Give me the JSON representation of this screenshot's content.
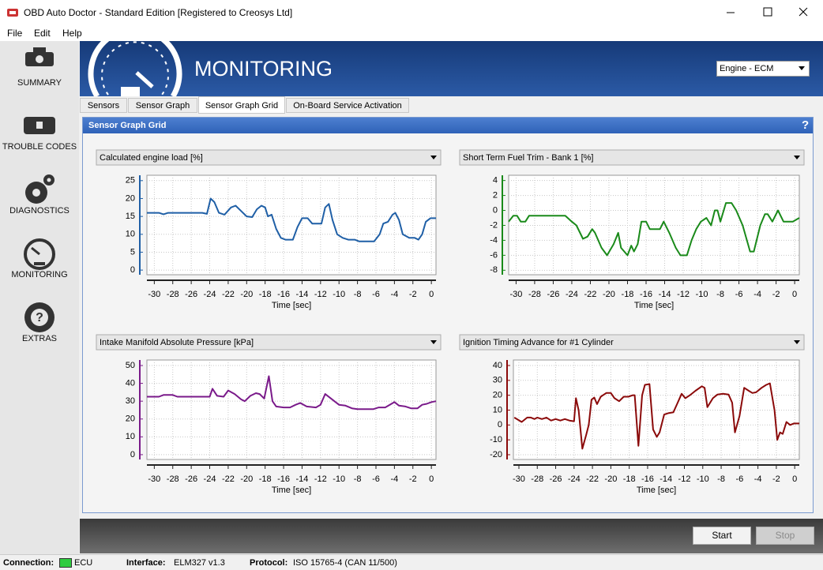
{
  "window": {
    "title": "OBD Auto Doctor - Standard Edition [Registered to Creosys Ltd]"
  },
  "menu": [
    "File",
    "Edit",
    "Help"
  ],
  "sidebar": [
    "SUMMARY",
    "TROUBLE CODES",
    "DIAGNOSTICS",
    "MONITORING",
    "EXTRAS"
  ],
  "header": {
    "title": "MONITORING",
    "ecu": "Engine - ECM"
  },
  "tabs": [
    "Sensors",
    "Sensor Graph",
    "Sensor Graph Grid",
    "On-Board Service Activation"
  ],
  "panel": {
    "title": "Sensor Graph Grid",
    "help": "?"
  },
  "buttons": [
    "Start",
    "Stop"
  ],
  "status": {
    "connection_label": "Connection:",
    "connection": "ECU",
    "interface_label": "Interface:",
    "interface": "ELM327 v1.3",
    "protocol_label": "Protocol:",
    "protocol": "ISO 15765-4 (CAN 11/500)"
  },
  "chart_data": [
    {
      "type": "line",
      "title": "Calculated engine load [%]",
      "xlabel": "Time [sec]",
      "color": "#1f5fa6",
      "xlim": [
        -30.8,
        0.5
      ],
      "xticks": [
        -30,
        -28,
        -26,
        -24,
        -22,
        -20,
        -18,
        -16,
        -14,
        -12,
        -10,
        -8,
        -6,
        -4,
        -2,
        0
      ],
      "ylim": [
        -1.3,
        26.5
      ],
      "yticks": [
        0,
        5,
        10,
        15,
        20,
        25
      ],
      "x": [
        -30.8,
        -29.5,
        -29,
        -28.5,
        -24.8,
        -24.3,
        -23.9,
        -23.5,
        -23,
        -22.4,
        -21.7,
        -21.2,
        -20.6,
        -20,
        -19.4,
        -18.9,
        -18.4,
        -18,
        -17.7,
        -17.3,
        -16.8,
        -16.3,
        -15.8,
        -15,
        -14.5,
        -14,
        -13.4,
        -12.9,
        -11.9,
        -11.5,
        -11.1,
        -10.7,
        -10.2,
        -9.6,
        -9,
        -8.3,
        -7.8,
        -6.2,
        -5.6,
        -5.2,
        -4.7,
        -4.2,
        -3.9,
        -3.5,
        -3.1,
        -2.4,
        -1.8,
        -1.4,
        -1,
        -0.6,
        -0.1,
        0.5
      ],
      "values": [
        16,
        16,
        15.6,
        16,
        16,
        15.7,
        20,
        19,
        16,
        15.5,
        17.5,
        18,
        16.5,
        15,
        14.8,
        17,
        18,
        17.5,
        15,
        15.5,
        11.5,
        9,
        8.5,
        8.5,
        12,
        14.5,
        14.5,
        13,
        13,
        17.5,
        18.5,
        14,
        10,
        9,
        8.5,
        8.5,
        8,
        8,
        10,
        13,
        13.5,
        15.5,
        16,
        14,
        10,
        9,
        9,
        8.5,
        10,
        13.5,
        14.5,
        14.5
      ]
    },
    {
      "type": "line",
      "title": "Short Term Fuel Trim - Bank 1 [%]",
      "xlabel": "Time [sec]",
      "color": "#1a8a1a",
      "xlim": [
        -30.8,
        0.5
      ],
      "xticks": [
        -30,
        -28,
        -26,
        -24,
        -22,
        -20,
        -18,
        -16,
        -14,
        -12,
        -10,
        -8,
        -6,
        -4,
        -2,
        0
      ],
      "ylim": [
        -8.6,
        4.7
      ],
      "yticks": [
        -8,
        -6,
        -4,
        -2,
        0,
        2,
        4
      ],
      "x": [
        -30.8,
        -30.3,
        -29.9,
        -29.5,
        -29,
        -28.6,
        -24.7,
        -24,
        -23.5,
        -22.8,
        -22.3,
        -21.8,
        -21.5,
        -20.8,
        -20.2,
        -19.5,
        -19,
        -18.7,
        -18,
        -17.6,
        -17.3,
        -16.9,
        -16.5,
        -16,
        -15.6,
        -14.5,
        -14.1,
        -13.5,
        -12.8,
        -12.3,
        -11.6,
        -11.1,
        -10.6,
        -10.1,
        -9.5,
        -9,
        -8.6,
        -8.3,
        -8,
        -7.4,
        -6.8,
        -6.3,
        -5.6,
        -4.8,
        -4.4,
        -3.7,
        -3.2,
        -2.9,
        -2.4,
        -1.8,
        -1.2,
        -0.2,
        0.5
      ],
      "values": [
        -1.5,
        -0.7,
        -0.7,
        -1.5,
        -1.5,
        -0.7,
        -0.7,
        -1.5,
        -2,
        -3.8,
        -3.5,
        -2.5,
        -3,
        -5,
        -6,
        -4.5,
        -3,
        -5,
        -6,
        -4.7,
        -5.5,
        -4.5,
        -1.5,
        -1.5,
        -2.5,
        -2.5,
        -1.5,
        -3,
        -5,
        -6,
        -6,
        -4,
        -2.5,
        -1.5,
        -1,
        -2,
        0,
        0,
        -1.5,
        1,
        1,
        0,
        -2,
        -5.5,
        -5.5,
        -2,
        -0.5,
        -0.5,
        -1.5,
        0,
        -1.5,
        -1.5,
        -1
      ]
    },
    {
      "type": "line",
      "title": "Intake Manifold Absolute Pressure [kPa]",
      "xlabel": "Time [sec]",
      "color": "#7a1a8a",
      "xlim": [
        -30.8,
        0.5
      ],
      "xticks": [
        -30,
        -28,
        -26,
        -24,
        -22,
        -20,
        -18,
        -16,
        -14,
        -12,
        -10,
        -8,
        -6,
        -4,
        -2,
        0
      ],
      "ylim": [
        -2.7,
        53.1
      ],
      "yticks": [
        0,
        10,
        20,
        30,
        40,
        50
      ],
      "x": [
        -30.8,
        -29.5,
        -29,
        -28,
        -27.5,
        -24,
        -23.7,
        -23.2,
        -22.5,
        -22,
        -21.3,
        -20.6,
        -20.2,
        -19.6,
        -19,
        -18.6,
        -18.1,
        -17.6,
        -17.2,
        -16.8,
        -16,
        -15.3,
        -14.7,
        -14.2,
        -13.5,
        -12.5,
        -12,
        -11.5,
        -11,
        -10.5,
        -10,
        -9.3,
        -8.6,
        -8,
        -6.3,
        -5.7,
        -5,
        -4.5,
        -4,
        -3.5,
        -2.8,
        -2.2,
        -1.5,
        -1,
        -0.5,
        0,
        0.5
      ],
      "values": [
        32.5,
        32.5,
        33.5,
        33.5,
        32.5,
        32.5,
        37,
        33,
        32.5,
        36,
        34,
        31,
        30,
        33,
        34.5,
        34,
        31.5,
        44,
        30,
        27,
        26.5,
        26.5,
        28,
        29,
        27,
        26.5,
        28,
        34,
        32,
        30,
        28,
        27.5,
        26,
        25.5,
        25.5,
        26.5,
        26.5,
        28,
        29.5,
        27.5,
        27,
        26,
        26,
        28,
        28.5,
        29.5,
        30
      ]
    },
    {
      "type": "line",
      "title": "Ignition Timing Advance for #1 Cylinder",
      "xlabel": "Time [sec]",
      "color": "#8b0a0a",
      "xlim": [
        -30.6,
        0.5
      ],
      "xticks": [
        -30,
        -28,
        -26,
        -24,
        -22,
        -20,
        -18,
        -16,
        -14,
        -12,
        -10,
        -8,
        -6,
        -4,
        -2,
        0
      ],
      "ylim": [
        -23.2,
        43.7
      ],
      "yticks": [
        -20,
        -10,
        0,
        10,
        20,
        30,
        40
      ],
      "x": [
        -30.5,
        -29.7,
        -29.1,
        -28.7,
        -28.3,
        -28,
        -27.5,
        -27,
        -26.5,
        -26,
        -25.5,
        -25,
        -24.5,
        -24,
        -23.8,
        -23.5,
        -23.1,
        -22.7,
        -22.4,
        -22.1,
        -21.8,
        -21.5,
        -21.1,
        -20.5,
        -20,
        -19.6,
        -19.1,
        -18.6,
        -18.1,
        -17.6,
        -17.4,
        -17,
        -16.6,
        -16.3,
        -15.8,
        -15.4,
        -15,
        -14.7,
        -14.2,
        -13.7,
        -13.2,
        -12.8,
        -12.3,
        -11.9,
        -11.4,
        -10.8,
        -10.1,
        -9.8,
        -9.5,
        -8.9,
        -8.4,
        -7.8,
        -7.2,
        -6.8,
        -6.5,
        -6,
        -5.5,
        -5,
        -4.6,
        -4.2,
        -3.6,
        -3.1,
        -2.7,
        -2.2,
        -1.9,
        -1.6,
        -1.3,
        -0.9,
        -0.5,
        -0.1,
        0.5
      ],
      "values": [
        5,
        2,
        5,
        5,
        4,
        5,
        4,
        5,
        3,
        4,
        3,
        4,
        3,
        2.5,
        18,
        10,
        -16,
        -7,
        0,
        17,
        18.5,
        14,
        19,
        21.5,
        21.5,
        18,
        16,
        19,
        19,
        20,
        20,
        -14,
        20,
        27,
        27.5,
        -3,
        -8,
        -5,
        7,
        8,
        8.5,
        14,
        21,
        18,
        20,
        23,
        26,
        25,
        12,
        18,
        20.5,
        21,
        20.5,
        15,
        -5,
        6,
        25,
        23,
        21.5,
        22,
        25,
        27,
        28,
        10,
        -10,
        -5,
        -6,
        2,
        0,
        1,
        1
      ]
    }
  ]
}
